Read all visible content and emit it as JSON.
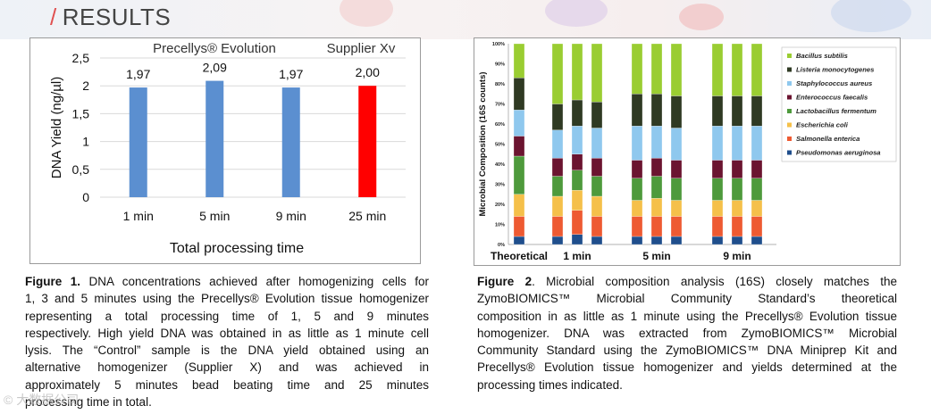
{
  "header": {
    "slash": "/",
    "title": "RESULTS"
  },
  "figure1": {
    "group_label_left": "Precellys® Evolution",
    "group_label_right": "Supplier Xv",
    "caption_lines": [
      {
        "bold": "Figure 1.",
        "text": " DNA concentrations achieved after homogenizing cells for"
      },
      {
        "bold": "",
        "text": "1, 3  and 5 minutes using the Precellys® Evolution tissue homogenizer"
      },
      {
        "bold": "",
        "text": "representing  a  total  processing  time  of  1,  5  and  9  minutes"
      },
      {
        "bold": "",
        "text": "respectively. High yield DNA was obtained in as little as 1 minute cell"
      },
      {
        "bold": "",
        "text": "lysis. The “Control” sample is the DNA yield obtained using an"
      },
      {
        "bold": "",
        "text": "alternative  homogenizer  (Supplier  X)  and  was  achieved  in"
      },
      {
        "bold": "",
        "text": "approximately  5  minutes  bead  beating  time  and  25  minutes"
      },
      {
        "bold": "",
        "text": "processing time in total."
      }
    ]
  },
  "figure2": {
    "xlabels": [
      "Theoretical",
      "1 min",
      "5 min",
      "9 min"
    ],
    "legend": [
      {
        "name": "Bacillus subtilis",
        "color": "#9acd32"
      },
      {
        "name": "Listeria monocytogenes",
        "color": "#2f3a23"
      },
      {
        "name": "Staphylococcus aureus",
        "color": "#8fc8ee"
      },
      {
        "name": "Enterococcus faecalis",
        "color": "#6b1430"
      },
      {
        "name": "Lactobacillus fermentum",
        "color": "#4e9a3c"
      },
      {
        "name": "Escherichia coli",
        "color": "#f5c04a"
      },
      {
        "name": "Salmonella enterica",
        "color": "#ee5a32"
      },
      {
        "name": "Pseudomonas aeruginosa",
        "color": "#1f4e8c"
      }
    ],
    "caption_lines": [
      {
        "bold": "Figure 2",
        "text": ".  Microbial composition analysis (16S) closely matches the"
      },
      {
        "bold": "",
        "text": "ZymoBIOMICS™  Microbial  Community  Standard’s  theoretical"
      },
      {
        "bold": "",
        "text": "composition in as little as 1 minute using the Precellys® Evolution tissue"
      },
      {
        "bold": "",
        "text": "homogenizer.  DNA  was  extracted  from  ZymoBIOMICS™  Microbial"
      },
      {
        "bold": "",
        "text": "Community Standard using the ZymoBIOMICS™ DNA Miniprep Kit and"
      },
      {
        "bold": "",
        "text": "Precellys® Evolution tissue homogenizer and yields determined at the"
      },
      {
        "bold": "",
        "text": "processing times indicated."
      }
    ]
  },
  "watermark": "© 大数据公司",
  "chart_data": [
    {
      "type": "bar",
      "categories": [
        "1 min",
        "5 min",
        "9 min",
        "25 min"
      ],
      "values": [
        1.97,
        2.09,
        1.97,
        2.0
      ],
      "value_labels": [
        "1,97",
        "2,09",
        "1,97",
        "2,00"
      ],
      "bar_colors": [
        "#5b8fd0",
        "#5b8fd0",
        "#5b8fd0",
        "#ff0000"
      ],
      "xlabel": "Total processing time",
      "ylabel": "DNA Yield (ng/µl)",
      "yticks": [
        "0",
        "0,5",
        "1",
        "1,5",
        "2",
        "2,5"
      ],
      "ylim": [
        0,
        2.5
      ],
      "grid": true
    },
    {
      "type": "bar",
      "stacked": true,
      "percent": true,
      "ylabel": "Microbial Composition (16S counts)",
      "yticks": [
        "0%",
        "10%",
        "20%",
        "30%",
        "40%",
        "50%",
        "60%",
        "70%",
        "80%",
        "90%",
        "100%"
      ],
      "ylim": [
        0,
        100
      ],
      "series_order": [
        "Pseudomonas aeruginosa",
        "Salmonella enterica",
        "Escherichia coli",
        "Lactobacillus fermentum",
        "Enterococcus faecalis",
        "Staphylococcus aureus",
        "Listeria monocytogenes",
        "Bacillus subtilis"
      ],
      "groups": [
        {
          "label": "Theoretical",
          "bars": [
            [
              4,
              10,
              11,
              19,
              10,
              13,
              16,
              17
            ]
          ]
        },
        {
          "label": "1 min",
          "bars": [
            [
              4,
              10,
              10,
              10,
              9,
              14,
              13,
              30
            ],
            [
              5,
              12,
              10,
              10,
              8,
              14,
              13,
              28
            ],
            [
              4,
              10,
              10,
              10,
              9,
              15,
              13,
              29
            ]
          ]
        },
        {
          "label": "5 min",
          "bars": [
            [
              4,
              10,
              8,
              11,
              9,
              17,
              16,
              25
            ],
            [
              4,
              10,
              9,
              11,
              9,
              16,
              16,
              25
            ],
            [
              4,
              10,
              8,
              11,
              9,
              16,
              16,
              26
            ]
          ]
        },
        {
          "label": "9 min",
          "bars": [
            [
              4,
              10,
              8,
              11,
              9,
              17,
              15,
              26
            ],
            [
              4,
              10,
              8,
              11,
              9,
              17,
              15,
              26
            ],
            [
              4,
              10,
              8,
              11,
              9,
              17,
              15,
              26
            ]
          ]
        }
      ]
    }
  ]
}
